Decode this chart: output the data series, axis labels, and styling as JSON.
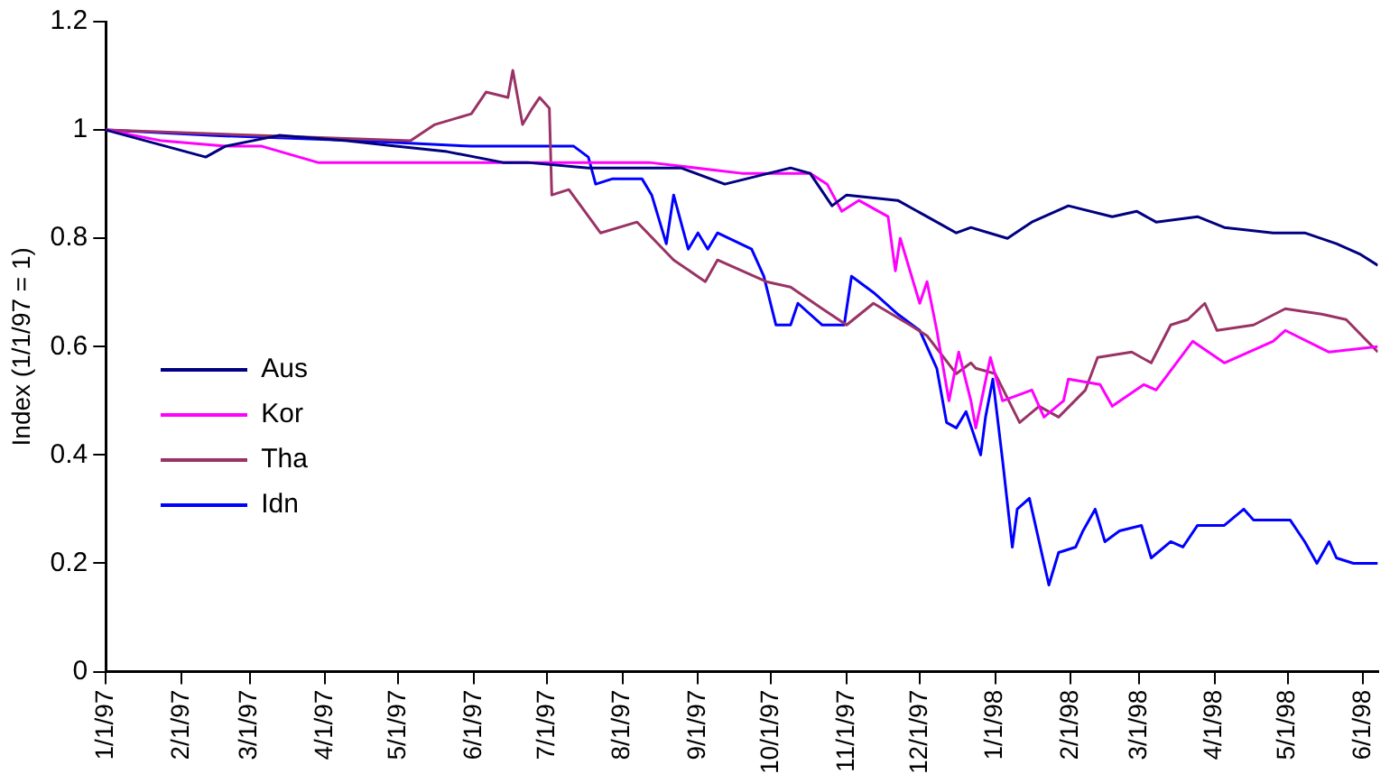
{
  "chart_data": {
    "type": "line",
    "ylabel": "Index (1/1/97 = 1)",
    "legend": "left",
    "grid": false,
    "marker": "none",
    "line_style": "solid",
    "xlim": [
      "1997-01-01",
      "1998-06-07"
    ],
    "xticks": [
      {
        "value": "1997-01-01",
        "label": "1/1/97"
      },
      {
        "value": "1997-02-01",
        "label": "2/1/97"
      },
      {
        "value": "1997-03-01",
        "label": "3/1/97"
      },
      {
        "value": "1997-04-01",
        "label": "4/1/97"
      },
      {
        "value": "1997-05-01",
        "label": "5/1/97"
      },
      {
        "value": "1997-06-01",
        "label": "6/1/97"
      },
      {
        "value": "1997-07-01",
        "label": "7/1/97"
      },
      {
        "value": "1997-08-01",
        "label": "8/1/97"
      },
      {
        "value": "1997-09-01",
        "label": "9/1/97"
      },
      {
        "value": "1997-10-01",
        "label": "10/1/97"
      },
      {
        "value": "1997-11-01",
        "label": "11/1/97"
      },
      {
        "value": "1997-12-01",
        "label": "12/1/97"
      },
      {
        "value": "1998-01-01",
        "label": "1/1/98"
      },
      {
        "value": "1998-02-01",
        "label": "2/1/98"
      },
      {
        "value": "1998-03-01",
        "label": "3/1/98"
      },
      {
        "value": "1998-04-01",
        "label": "4/1/98"
      },
      {
        "value": "1998-05-01",
        "label": "5/1/98"
      },
      {
        "value": "1998-06-01",
        "label": "6/1/98"
      }
    ],
    "ylim": [
      0,
      1.2
    ],
    "yticks": [
      0,
      0.2,
      0.4,
      0.6,
      0.8,
      1,
      1.2
    ],
    "series": [
      {
        "name": "Aus",
        "color": "#000080",
        "x": [
          "1997-01-01",
          "1997-02-11",
          "1997-02-19",
          "1997-03-13",
          "1997-04-10",
          "1997-04-30",
          "1997-05-21",
          "1997-06-13",
          "1997-06-23",
          "1997-07-18",
          "1997-08-25",
          "1997-09-12",
          "1997-10-09",
          "1997-10-17",
          "1997-10-26",
          "1997-11-01",
          "1997-11-22",
          "1997-12-04",
          "1997-12-16",
          "1997-12-22",
          "1998-01-06",
          "1998-01-16",
          "1998-01-31",
          "1998-02-18",
          "1998-02-28",
          "1998-03-08",
          "1998-03-25",
          "1998-04-05",
          "1998-04-25",
          "1998-05-08",
          "1998-05-21",
          "1998-05-31",
          "1998-06-07"
        ],
        "values": [
          1.0,
          0.95,
          0.97,
          0.99,
          0.98,
          0.97,
          0.96,
          0.94,
          0.94,
          0.93,
          0.93,
          0.9,
          0.93,
          0.92,
          0.86,
          0.88,
          0.87,
          0.84,
          0.81,
          0.82,
          0.8,
          0.83,
          0.86,
          0.84,
          0.85,
          0.83,
          0.84,
          0.82,
          0.81,
          0.81,
          0.79,
          0.77,
          0.75
        ]
      },
      {
        "name": "Kor",
        "color": "#ff00ff",
        "x": [
          "1997-01-01",
          "1997-01-24",
          "1997-02-19",
          "1997-03-06",
          "1997-03-29",
          "1997-04-30",
          "1997-05-31",
          "1997-06-30",
          "1997-08-12",
          "1997-09-19",
          "1997-10-17",
          "1997-10-24",
          "1997-10-30",
          "1997-11-06",
          "1997-11-14",
          "1997-11-18",
          "1997-11-21",
          "1997-11-23",
          "1997-12-01",
          "1997-12-04",
          "1997-12-08",
          "1997-12-13",
          "1997-12-17",
          "1997-12-22",
          "1997-12-24",
          "1997-12-30",
          "1998-01-04",
          "1998-01-16",
          "1998-01-21",
          "1998-01-29",
          "1998-01-31",
          "1998-02-13",
          "1998-02-18",
          "1998-03-03",
          "1998-03-08",
          "1998-03-23",
          "1998-04-05",
          "1998-04-25",
          "1998-04-30",
          "1998-05-18",
          "1998-06-07"
        ],
        "values": [
          1.0,
          0.98,
          0.97,
          0.97,
          0.94,
          0.94,
          0.94,
          0.94,
          0.94,
          0.92,
          0.92,
          0.9,
          0.85,
          0.87,
          0.85,
          0.84,
          0.74,
          0.8,
          0.68,
          0.72,
          0.63,
          0.5,
          0.59,
          0.5,
          0.45,
          0.58,
          0.5,
          0.52,
          0.47,
          0.5,
          0.54,
          0.53,
          0.49,
          0.53,
          0.52,
          0.61,
          0.57,
          0.61,
          0.63,
          0.59,
          0.6
        ]
      },
      {
        "name": "Tha",
        "color": "#993366",
        "x": [
          "1997-01-01",
          "1997-05-06",
          "1997-05-16",
          "1997-05-31",
          "1997-06-06",
          "1997-06-15",
          "1997-06-17",
          "1997-06-21",
          "1997-06-25",
          "1997-06-28",
          "1997-07-02",
          "1997-07-03",
          "1997-07-10",
          "1997-07-23",
          "1997-08-07",
          "1997-08-22",
          "1997-09-04",
          "1997-09-09",
          "1997-09-29",
          "1997-10-09",
          "1997-10-22",
          "1997-11-01",
          "1997-11-12",
          "1997-11-27",
          "1997-12-04",
          "1997-12-16",
          "1997-12-22",
          "1997-12-24",
          "1998-01-01",
          "1998-01-11",
          "1998-01-19",
          "1998-01-27",
          "1998-02-07",
          "1998-02-12",
          "1998-02-26",
          "1998-03-06",
          "1998-03-14",
          "1998-03-21",
          "1998-03-28",
          "1998-04-02",
          "1998-04-17",
          "1998-04-30",
          "1998-05-15",
          "1998-05-25",
          "1998-06-07"
        ],
        "values": [
          1.0,
          0.98,
          1.01,
          1.03,
          1.07,
          1.06,
          1.11,
          1.01,
          1.04,
          1.06,
          1.04,
          0.88,
          0.89,
          0.81,
          0.83,
          0.76,
          0.72,
          0.76,
          0.72,
          0.71,
          0.67,
          0.64,
          0.68,
          0.64,
          0.62,
          0.55,
          0.57,
          0.56,
          0.55,
          0.46,
          0.49,
          0.47,
          0.52,
          0.58,
          0.59,
          0.57,
          0.64,
          0.65,
          0.68,
          0.63,
          0.64,
          0.67,
          0.66,
          0.65,
          0.59
        ]
      },
      {
        "name": "Idn",
        "color": "#0000ff",
        "x": [
          "1997-01-01",
          "1997-02-13",
          "1997-04-15",
          "1997-05-31",
          "1997-07-12",
          "1997-07-18",
          "1997-07-21",
          "1997-07-28",
          "1997-08-09",
          "1997-08-13",
          "1997-08-19",
          "1997-08-22",
          "1997-08-28",
          "1997-09-01",
          "1997-09-05",
          "1997-09-09",
          "1997-09-23",
          "1997-09-28",
          "1997-10-03",
          "1997-10-09",
          "1997-10-12",
          "1997-10-22",
          "1997-10-31",
          "1997-11-03",
          "1997-11-12",
          "1997-11-22",
          "1997-12-01",
          "1997-12-08",
          "1997-12-12",
          "1997-12-16",
          "1997-12-20",
          "1997-12-26",
          "1997-12-28",
          "1997-12-31",
          "1998-01-04",
          "1998-01-08",
          "1998-01-10",
          "1998-01-15",
          "1998-01-23",
          "1998-01-27",
          "1998-02-03",
          "1998-02-06",
          "1998-02-11",
          "1998-02-15",
          "1998-02-21",
          "1998-03-02",
          "1998-03-06",
          "1998-03-14",
          "1998-03-19",
          "1998-03-25",
          "1998-04-05",
          "1998-04-13",
          "1998-04-17",
          "1998-05-02",
          "1998-05-08",
          "1998-05-13",
          "1998-05-18",
          "1998-05-21",
          "1998-05-28",
          "1998-06-07"
        ],
        "values": [
          1.0,
          0.99,
          0.98,
          0.97,
          0.97,
          0.95,
          0.9,
          0.91,
          0.91,
          0.88,
          0.79,
          0.88,
          0.78,
          0.81,
          0.78,
          0.81,
          0.78,
          0.73,
          0.64,
          0.64,
          0.68,
          0.64,
          0.64,
          0.73,
          0.7,
          0.66,
          0.63,
          0.56,
          0.46,
          0.45,
          0.48,
          0.4,
          0.47,
          0.54,
          0.39,
          0.23,
          0.3,
          0.32,
          0.16,
          0.22,
          0.23,
          0.26,
          0.3,
          0.24,
          0.26,
          0.27,
          0.21,
          0.24,
          0.23,
          0.27,
          0.27,
          0.3,
          0.28,
          0.28,
          0.24,
          0.2,
          0.24,
          0.21,
          0.2,
          0.2
        ]
      }
    ]
  }
}
